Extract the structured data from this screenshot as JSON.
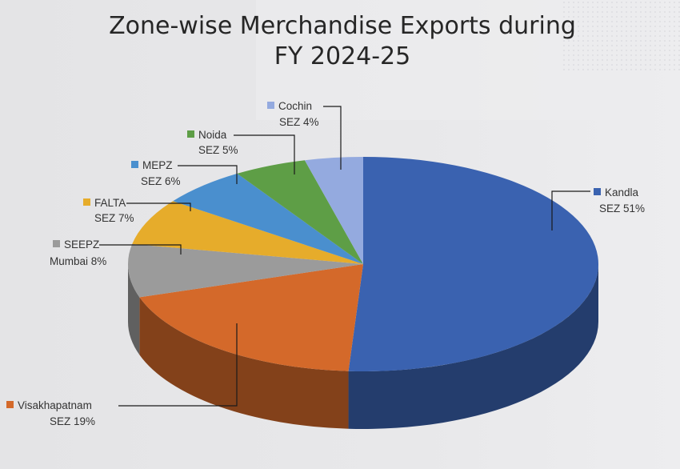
{
  "chart_data": {
    "type": "pie",
    "style": "3d-exploded-none",
    "title_lines": [
      "Zone-wise Merchandise Exports during",
      "FY 2024-25"
    ],
    "slices": [
      {
        "key": "kandla",
        "line1": "Kandla",
        "line2": "SEZ 51%",
        "value": 51,
        "color": "#3a62b0"
      },
      {
        "key": "visakhapatnam",
        "line1": "Visakhapatnam",
        "line2": "SEZ 19%",
        "value": 19,
        "color": "#d4692a"
      },
      {
        "key": "seepz",
        "line1": "SEEPZ",
        "line2": "Mumbai 8%",
        "value": 8,
        "color": "#9b9b9b"
      },
      {
        "key": "falta",
        "line1": "FALTA",
        "line2": "SEZ 7%",
        "value": 7,
        "color": "#e6ac2b"
      },
      {
        "key": "mepz",
        "line1": "MEPZ",
        "line2": "SEZ 6%",
        "value": 6,
        "color": "#4a8fce"
      },
      {
        "key": "noida",
        "line1": "Noida",
        "line2": "SEZ 5%",
        "value": 5,
        "color": "#5e9e46"
      },
      {
        "key": "cochin",
        "line1": "Cochin",
        "line2": "SEZ 4%",
        "value": 4,
        "color": "#94aadf"
      }
    ]
  }
}
